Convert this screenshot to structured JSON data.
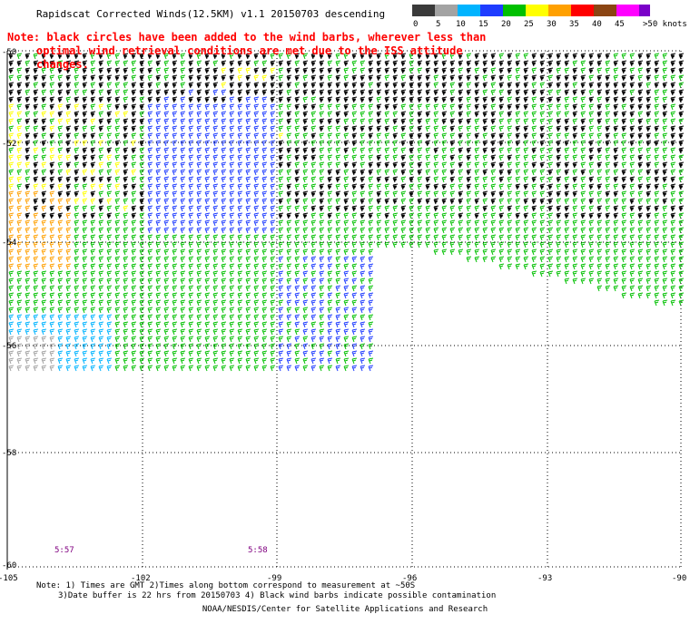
{
  "title": "Rapidscat Corrected Winds(12.5KM) v1.1 20150703 descending",
  "note_line1": "Note: black circles have been added to the wind barbs, wherever less than",
  "note_line2": "optimal wind retrieval conditions are met due to the ISS attitude changes.",
  "legend": {
    "units": ">50 knots",
    "bins": [
      {
        "label": "0",
        "color": "#3a3a3a"
      },
      {
        "label": "5",
        "color": "#a3a3a3"
      },
      {
        "label": "10",
        "color": "#00b4ff"
      },
      {
        "label": "15",
        "color": "#1e3cff"
      },
      {
        "label": "20",
        "color": "#00c000"
      },
      {
        "label": "25",
        "color": "#ffff00"
      },
      {
        "label": "30",
        "color": "#ffa000"
      },
      {
        "label": "35",
        "color": "#ff0000"
      },
      {
        "label": "40",
        "color": "#8b4513"
      },
      {
        "label": "45",
        "color": "#ff00ff"
      },
      {
        "label": "",
        "color": "#7a00c8"
      }
    ]
  },
  "axes": {
    "x_ticks": [
      "-105",
      "-102",
      "-99",
      "-96",
      "-93",
      "-90"
    ],
    "y_ticks": [
      "-50",
      "-52",
      "-54",
      "-56",
      "-58",
      "-60"
    ],
    "x_range": [
      -105,
      -90
    ],
    "y_range": [
      -60,
      -50
    ]
  },
  "time_labels": [
    "5:57",
    "5:58"
  ],
  "footnote_line1": "Note: 1) Times are GMT 2)Times along bottom correspond to measurement at ~50S",
  "footnote_line2": "3)Date buffer is 22 hrs from 20150703 4) Black wind barbs indicate possible contamination",
  "credit": "NOAA/NESDIS/Center for Satellite Applications and Research"
}
